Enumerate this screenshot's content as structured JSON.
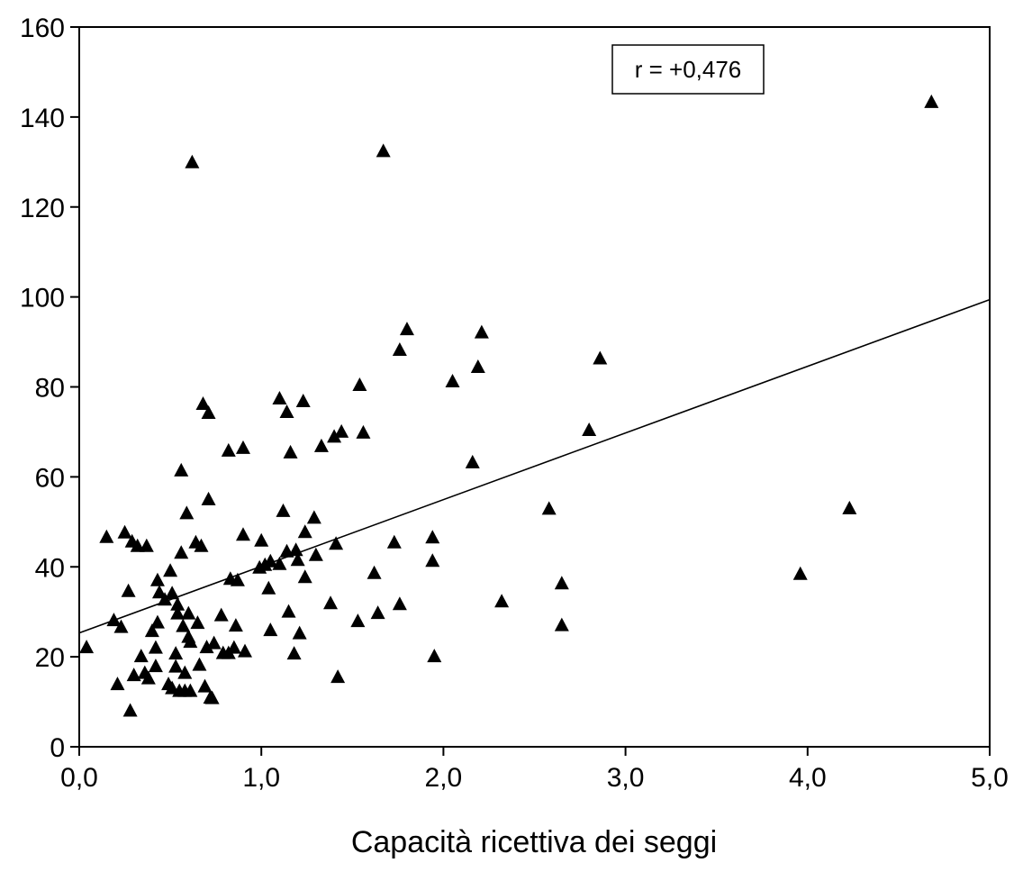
{
  "chart_data": {
    "type": "scatter",
    "title": "",
    "xlabel": "Capacità ricettiva dei seggi",
    "ylabel": "",
    "xlim": [
      0,
      5
    ],
    "ylim": [
      0,
      160
    ],
    "x_ticks": [
      0,
      1,
      2,
      3,
      4,
      5
    ],
    "x_tick_labels": [
      "0,0",
      "1,0",
      "2,0",
      "3,0",
      "4,0",
      "5,0"
    ],
    "y_ticks": [
      0,
      20,
      40,
      60,
      80,
      100,
      120,
      140,
      160
    ],
    "y_tick_labels": [
      "0",
      "20",
      "40",
      "60",
      "80",
      "100",
      "120",
      "140",
      "160"
    ],
    "grid": false,
    "marker": "triangle",
    "marker_color": "#000000",
    "annotation": "r = +0,476",
    "trendline": {
      "x": [
        0,
        5
      ],
      "y": [
        25.3,
        99.4
      ]
    },
    "points": [
      [
        0.04,
        22
      ],
      [
        0.15,
        46.5
      ],
      [
        0.19,
        28
      ],
      [
        0.21,
        13.8
      ],
      [
        0.23,
        26.5
      ],
      [
        0.25,
        47.5
      ],
      [
        0.27,
        34.5
      ],
      [
        0.28,
        7.9
      ],
      [
        0.29,
        45.5
      ],
      [
        0.3,
        15.8
      ],
      [
        0.32,
        44.5
      ],
      [
        0.34,
        20
      ],
      [
        0.36,
        16.3
      ],
      [
        0.37,
        44.5
      ],
      [
        0.38,
        15.1
      ],
      [
        0.4,
        25.6
      ],
      [
        0.42,
        21.9
      ],
      [
        0.42,
        17.8
      ],
      [
        0.43,
        27.5
      ],
      [
        0.43,
        36.9
      ],
      [
        0.44,
        34.2
      ],
      [
        0.47,
        32.6
      ],
      [
        0.49,
        13.8
      ],
      [
        0.5,
        39
      ],
      [
        0.51,
        12.9
      ],
      [
        0.51,
        34
      ],
      [
        0.53,
        17.7
      ],
      [
        0.53,
        20.6
      ],
      [
        0.54,
        29.5
      ],
      [
        0.54,
        31.5
      ],
      [
        0.55,
        12.3
      ],
      [
        0.56,
        43
      ],
      [
        0.56,
        61.3
      ],
      [
        0.57,
        26.7
      ],
      [
        0.58,
        16.3
      ],
      [
        0.58,
        12.3
      ],
      [
        0.59,
        51.8
      ],
      [
        0.6,
        29.5
      ],
      [
        0.6,
        24.3
      ],
      [
        0.61,
        23.2
      ],
      [
        0.61,
        12.3
      ],
      [
        0.62,
        129.8
      ],
      [
        0.64,
        45.3
      ],
      [
        0.65,
        27.4
      ],
      [
        0.66,
        18.1
      ],
      [
        0.67,
        44.5
      ],
      [
        0.68,
        76.1
      ],
      [
        0.69,
        13.3
      ],
      [
        0.7,
        22
      ],
      [
        0.71,
        74.1
      ],
      [
        0.71,
        54.9
      ],
      [
        0.72,
        10.8
      ],
      [
        0.73,
        10.7
      ],
      [
        0.74,
        22.9
      ],
      [
        0.78,
        29.1
      ],
      [
        0.79,
        20.7
      ],
      [
        0.82,
        20.7
      ],
      [
        0.82,
        65.7
      ],
      [
        0.83,
        37.2
      ],
      [
        0.85,
        21.9
      ],
      [
        0.86,
        26.8
      ],
      [
        0.87,
        36.9
      ],
      [
        0.9,
        47
      ],
      [
        0.9,
        66.3
      ],
      [
        0.91,
        21.1
      ],
      [
        0.99,
        39.7
      ],
      [
        1.0,
        45.7
      ],
      [
        1.02,
        40.3
      ],
      [
        1.04,
        35.1
      ],
      [
        1.05,
        41.1
      ],
      [
        1.05,
        25.8
      ],
      [
        1.1,
        40.5
      ],
      [
        1.1,
        77.3
      ],
      [
        1.12,
        52.3
      ],
      [
        1.14,
        74.3
      ],
      [
        1.14,
        43.3
      ],
      [
        1.15,
        29.9
      ],
      [
        1.16,
        65.3
      ],
      [
        1.18,
        20.6
      ],
      [
        1.19,
        43.6
      ],
      [
        1.2,
        41.4
      ],
      [
        1.21,
        25.1
      ],
      [
        1.23,
        76.7
      ],
      [
        1.24,
        47.6
      ],
      [
        1.24,
        37.6
      ],
      [
        1.29,
        50.8
      ],
      [
        1.3,
        42.5
      ],
      [
        1.33,
        66.7
      ],
      [
        1.38,
        31.8
      ],
      [
        1.4,
        68.8
      ],
      [
        1.41,
        45
      ],
      [
        1.42,
        15.4
      ],
      [
        1.44,
        69.9
      ],
      [
        1.53,
        27.8
      ],
      [
        1.54,
        80.3
      ],
      [
        1.56,
        69.7
      ],
      [
        1.62,
        38.5
      ],
      [
        1.64,
        29.6
      ],
      [
        1.67,
        132.3
      ],
      [
        1.73,
        45.3
      ],
      [
        1.76,
        31.6
      ],
      [
        1.76,
        88.1
      ],
      [
        1.8,
        92.7
      ],
      [
        1.94,
        46.4
      ],
      [
        1.94,
        41.2
      ],
      [
        1.95,
        20
      ],
      [
        2.05,
        81.1
      ],
      [
        2.16,
        63.1
      ],
      [
        2.19,
        84.3
      ],
      [
        2.21,
        92
      ],
      [
        2.32,
        32.2
      ],
      [
        2.58,
        52.8
      ],
      [
        2.65,
        36.2
      ],
      [
        2.65,
        26.9
      ],
      [
        2.8,
        70.3
      ],
      [
        2.86,
        86.2
      ],
      [
        3.96,
        38.3
      ],
      [
        4.23,
        52.9
      ],
      [
        4.68,
        143.2
      ]
    ]
  }
}
